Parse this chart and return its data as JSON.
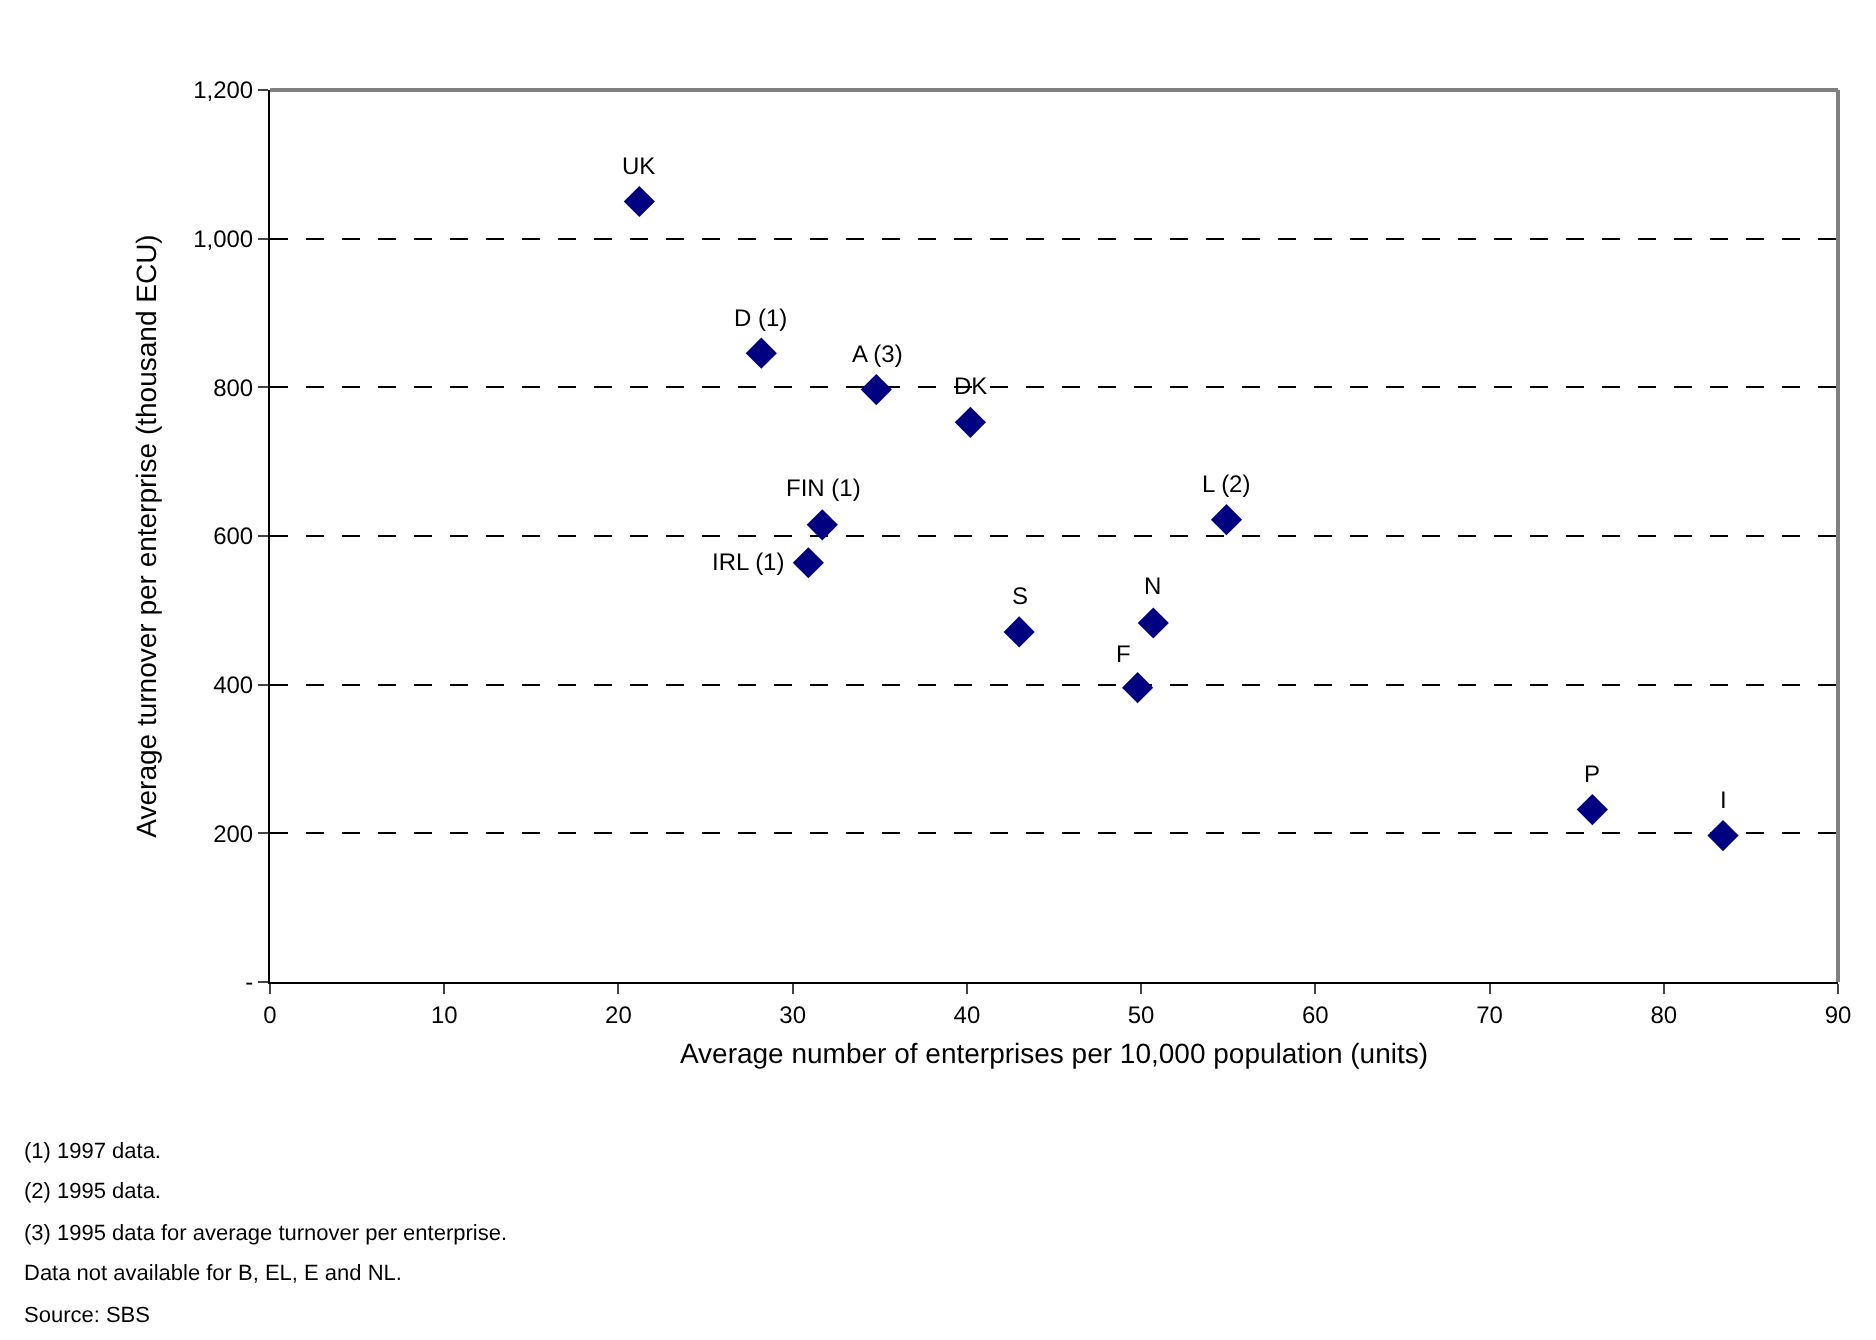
{
  "chart_data": {
    "type": "scatter",
    "xlabel": "Average number of enterprises per 10,000 population (units)",
    "ylabel": "Average turnover per enterprise (thousand ECU)",
    "series": [
      {
        "color": "#000080",
        "x": [
          21.2,
          28.2,
          34.8,
          40.2,
          31.7,
          30.9,
          43.0,
          50.7,
          49.8,
          54.9,
          75.9,
          83.4
        ],
        "values": [
          1050,
          846,
          797,
          753,
          615,
          564,
          471,
          483,
          396,
          622,
          232,
          197
        ]
      }
    ],
    "xlim": [
      0,
      90
    ],
    "xticks": [
      0,
      10,
      20,
      30,
      40,
      50,
      60,
      70,
      80,
      90
    ],
    "ylim": [
      0,
      1200
    ],
    "yticks": [
      {
        "value": 0,
        "label": "-"
      },
      200,
      400,
      600,
      800,
      {
        "value": 1000,
        "label": "1,000"
      },
      {
        "value": 1200,
        "label": "1,200"
      }
    ],
    "grid": "y",
    "line_style": "dashed",
    "marker": "diamond",
    "legend": false,
    "annotations": [
      {
        "text": "UK",
        "x": 21.2,
        "y": 1050
      },
      {
        "text": "D (1)",
        "x": 28.2,
        "y": 846
      },
      {
        "text": "A (3)",
        "x": 34.8,
        "y": 797
      },
      {
        "text": "DK",
        "x": 40.2,
        "y": 753
      },
      {
        "text": "FIN (1)",
        "x": 31.7,
        "y": 615
      },
      {
        "text": "IRL (1)",
        "x": 30.9,
        "y": 564
      },
      {
        "text": "S",
        "x": 43.0,
        "y": 471
      },
      {
        "text": "N",
        "x": 50.7,
        "y": 483
      },
      {
        "text": "F",
        "x": 49.8,
        "y": 396
      },
      {
        "text": "L (2)",
        "x": 54.9,
        "y": 622
      },
      {
        "text": "P",
        "x": 75.9,
        "y": 232
      },
      {
        "text": "I",
        "x": 83.4,
        "y": 197
      },
      "(1) 1997 data.",
      "(2) 1995 data.",
      "(3) 1995 data for average turnover per enterprise.",
      "Data not available for B, EL, E and NL.",
      "Source: SBS"
    ]
  }
}
